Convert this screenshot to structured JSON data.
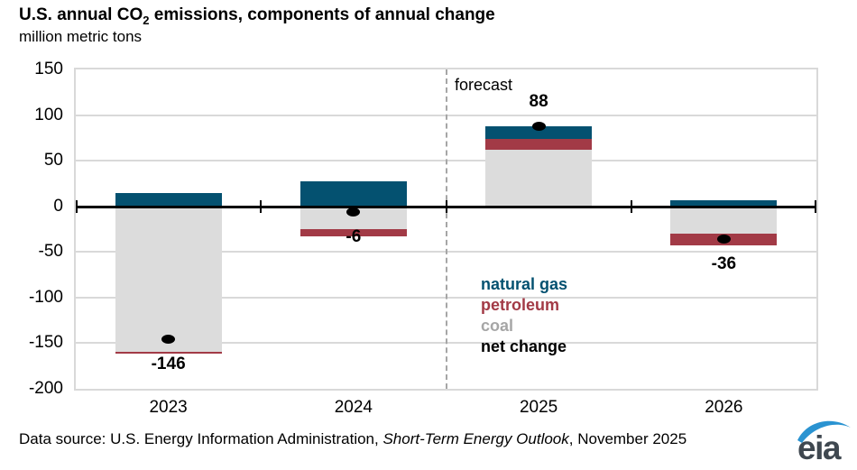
{
  "title": {
    "part1": "U.S. annual CO",
    "sub": "2",
    "part2": " emissions, components of annual change"
  },
  "subtitle": "million metric tons",
  "chart_data": {
    "type": "bar",
    "stacked": true,
    "title": "U.S. annual CO2 emissions, components of annual change",
    "units": "million metric tons",
    "categories": [
      "2023",
      "2024",
      "2025",
      "2026"
    ],
    "stack_order": [
      "coal",
      "petroleum",
      "natural gas"
    ],
    "series": [
      {
        "name": "natural gas",
        "color": "#045170",
        "values": [
          15,
          27,
          14,
          7
        ]
      },
      {
        "name": "petroleum",
        "color": "#a23a46",
        "values": [
          -2,
          -8,
          12,
          -13
        ]
      },
      {
        "name": "coal",
        "color": "#dcdcdc",
        "values": [
          -159,
          -25,
          62,
          -30
        ]
      }
    ],
    "net_change": {
      "name": "net change",
      "color": "#000000",
      "values": [
        -146,
        -6,
        88,
        -36
      ]
    },
    "data_labels": [
      "-146",
      "-6",
      "88",
      "-36"
    ],
    "ylim": [
      -200,
      150
    ],
    "yticks": [
      150,
      100,
      50,
      0,
      -50,
      -100,
      -150,
      -200
    ],
    "grid": true,
    "legend_position": "inside-right",
    "forecast": {
      "label": "forecast",
      "starts_after_category": "2024"
    }
  },
  "legend": {
    "items": [
      {
        "label": "natural gas",
        "color": "#045170"
      },
      {
        "label": "petroleum",
        "color": "#a23a46"
      },
      {
        "label": "coal",
        "color": "#a6a6a6"
      },
      {
        "label": "net change",
        "color": "#000000"
      }
    ]
  },
  "footer": {
    "prefix": "Data source: U.S. Energy Information Administration, ",
    "italic": "Short-Term Energy Outlook",
    "suffix": ", November 2025"
  },
  "logo": {
    "text": "eia",
    "text_color": "#3f4850",
    "swoosh_color": "#2a93d1"
  }
}
